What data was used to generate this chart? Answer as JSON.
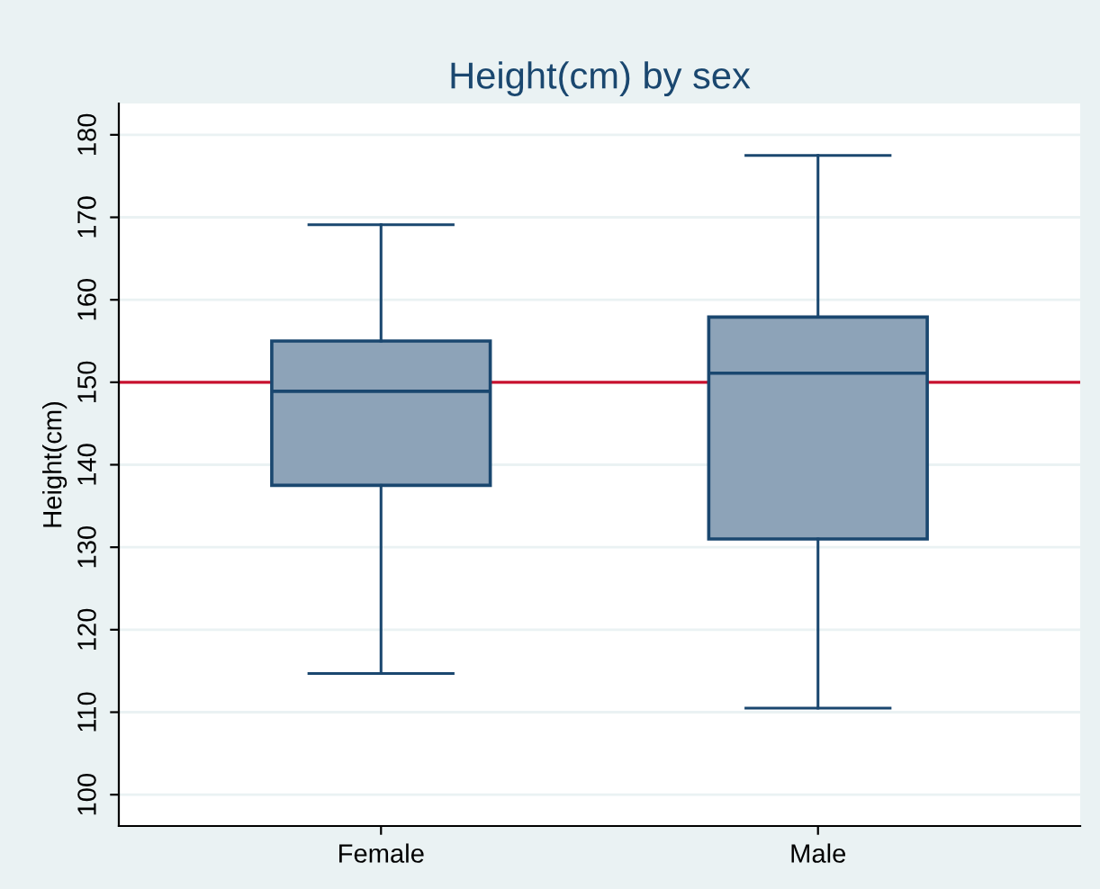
{
  "chart_data": {
    "type": "box",
    "title": "Height(cm) by sex",
    "ylabel": "Height(cm)",
    "categories": [
      "Female",
      "Male"
    ],
    "boxes": [
      {
        "low": 114.7,
        "q1": 137.5,
        "median": 148.9,
        "q3": 155,
        "high": 169.1
      },
      {
        "low": 110.5,
        "q1": 131,
        "median": 151.1,
        "q3": 157.9,
        "high": 177.5
      }
    ],
    "color": "#8da3b8",
    "ylim": [
      96.2,
      183.8
    ],
    "yticks": [
      100,
      110,
      120,
      130,
      140,
      150,
      160,
      170,
      180
    ],
    "grid": "y",
    "ref_lines": [
      {
        "axis": "y",
        "value": 150,
        "color": "#c8102e"
      }
    ]
  }
}
